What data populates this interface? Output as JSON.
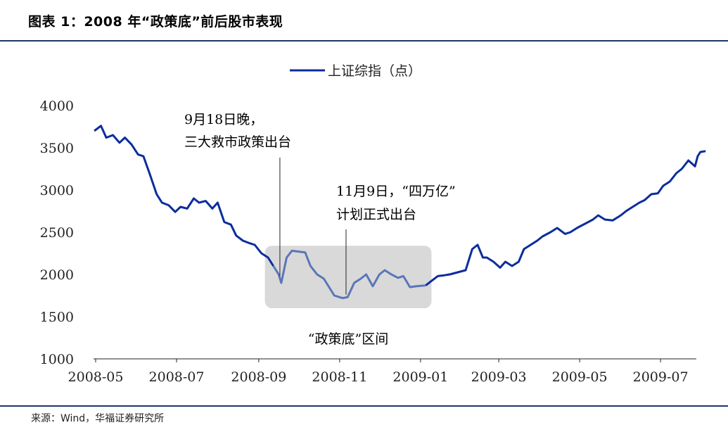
{
  "header": {
    "title": "图表 1：2008 年“政策底”前后股市表现"
  },
  "footer": {
    "source": "来源：Wind，华福证券研究所"
  },
  "colors": {
    "line": "#0b2d9c",
    "line_highlight": "#5a76b8",
    "box": "#d9d9d9",
    "rule": "#1f3864"
  },
  "chart_data": {
    "type": "line",
    "legend": {
      "position": "top-center",
      "entries": [
        "上证综指（点）"
      ]
    },
    "ylim": [
      1000,
      4000
    ],
    "yticks": [
      "1000",
      "1500",
      "2000",
      "2500",
      "3000",
      "3500",
      "4000"
    ],
    "xticks": [
      "2008-05",
      "2008-07",
      "2008-09",
      "2008-11",
      "2009-01",
      "2009-03",
      "2009-05",
      "2009-07"
    ],
    "grid": false,
    "series": [
      {
        "name": "上证综指（点）",
        "x": [
          "2008-04-30",
          "2008-05-05",
          "2008-05-09",
          "2008-05-14",
          "2008-05-19",
          "2008-05-23",
          "2008-05-28",
          "2008-06-02",
          "2008-06-06",
          "2008-06-11",
          "2008-06-16",
          "2008-06-20",
          "2008-06-25",
          "2008-06-30",
          "2008-07-04",
          "2008-07-09",
          "2008-07-14",
          "2008-07-18",
          "2008-07-23",
          "2008-07-28",
          "2008-08-01",
          "2008-08-06",
          "2008-08-11",
          "2008-08-15",
          "2008-08-20",
          "2008-08-25",
          "2008-08-29",
          "2008-09-03",
          "2008-09-08",
          "2008-09-12",
          "2008-09-16",
          "2008-09-18",
          "2008-09-22",
          "2008-09-26",
          "2008-10-06",
          "2008-10-10",
          "2008-10-15",
          "2008-10-20",
          "2008-10-24",
          "2008-10-28",
          "2008-11-03",
          "2008-11-07",
          "2008-11-12",
          "2008-11-17",
          "2008-11-21",
          "2008-11-26",
          "2008-12-01",
          "2008-12-05",
          "2008-12-10",
          "2008-12-15",
          "2008-12-19",
          "2008-12-24",
          "2008-12-29",
          "2009-01-05",
          "2009-01-09",
          "2009-01-14",
          "2009-01-19",
          "2009-01-23",
          "2009-02-04",
          "2009-02-09",
          "2009-02-13",
          "2009-02-17",
          "2009-02-20",
          "2009-02-25",
          "2009-03-02",
          "2009-03-06",
          "2009-03-11",
          "2009-03-16",
          "2009-03-20",
          "2009-03-25",
          "2009-03-30",
          "2009-04-03",
          "2009-04-09",
          "2009-04-14",
          "2009-04-20",
          "2009-04-24",
          "2009-04-29",
          "2009-05-05",
          "2009-05-11",
          "2009-05-15",
          "2009-05-20",
          "2009-05-26",
          "2009-06-01",
          "2009-06-05",
          "2009-06-10",
          "2009-06-15",
          "2009-06-19",
          "2009-06-24",
          "2009-06-29",
          "2009-07-03",
          "2009-07-08",
          "2009-07-13",
          "2009-07-17",
          "2009-07-22",
          "2009-07-27",
          "2009-07-29",
          "2009-07-31",
          "2009-08-04"
        ],
        "values": [
          3700,
          3760,
          3620,
          3650,
          3560,
          3620,
          3540,
          3420,
          3400,
          3180,
          2950,
          2850,
          2820,
          2740,
          2800,
          2780,
          2900,
          2850,
          2870,
          2780,
          2850,
          2620,
          2590,
          2460,
          2400,
          2370,
          2350,
          2250,
          2200,
          2100,
          2000,
          1900,
          2200,
          2280,
          2260,
          2100,
          2000,
          1950,
          1850,
          1750,
          1720,
          1730,
          1900,
          1950,
          2000,
          1860,
          2000,
          2050,
          2000,
          1960,
          1980,
          1850,
          1860,
          1870,
          1920,
          1980,
          1990,
          2000,
          2050,
          2300,
          2350,
          2200,
          2200,
          2150,
          2080,
          2150,
          2100,
          2150,
          2300,
          2350,
          2400,
          2450,
          2500,
          2550,
          2480,
          2500,
          2550,
          2600,
          2650,
          2700,
          2650,
          2640,
          2700,
          2750,
          2800,
          2850,
          2880,
          2950,
          2960,
          3050,
          3100,
          3200,
          3250,
          3350,
          3280,
          3400,
          3450,
          3460
        ]
      }
    ],
    "annotations": {
      "sep18_line1": "9月18日晚，",
      "sep18_line2": "三大救市政策出台",
      "sep18_date": "2008-09-18",
      "nov9_line1": "11月9日，“四万亿”",
      "nov9_line2": "计划正式出台",
      "nov9_date": "2008-11-09",
      "zone_label": "“政策底”区间",
      "zone_start": "2008-09-12",
      "zone_end": "2009-01-05",
      "zone_ylim": [
        1600,
        2340
      ]
    }
  }
}
